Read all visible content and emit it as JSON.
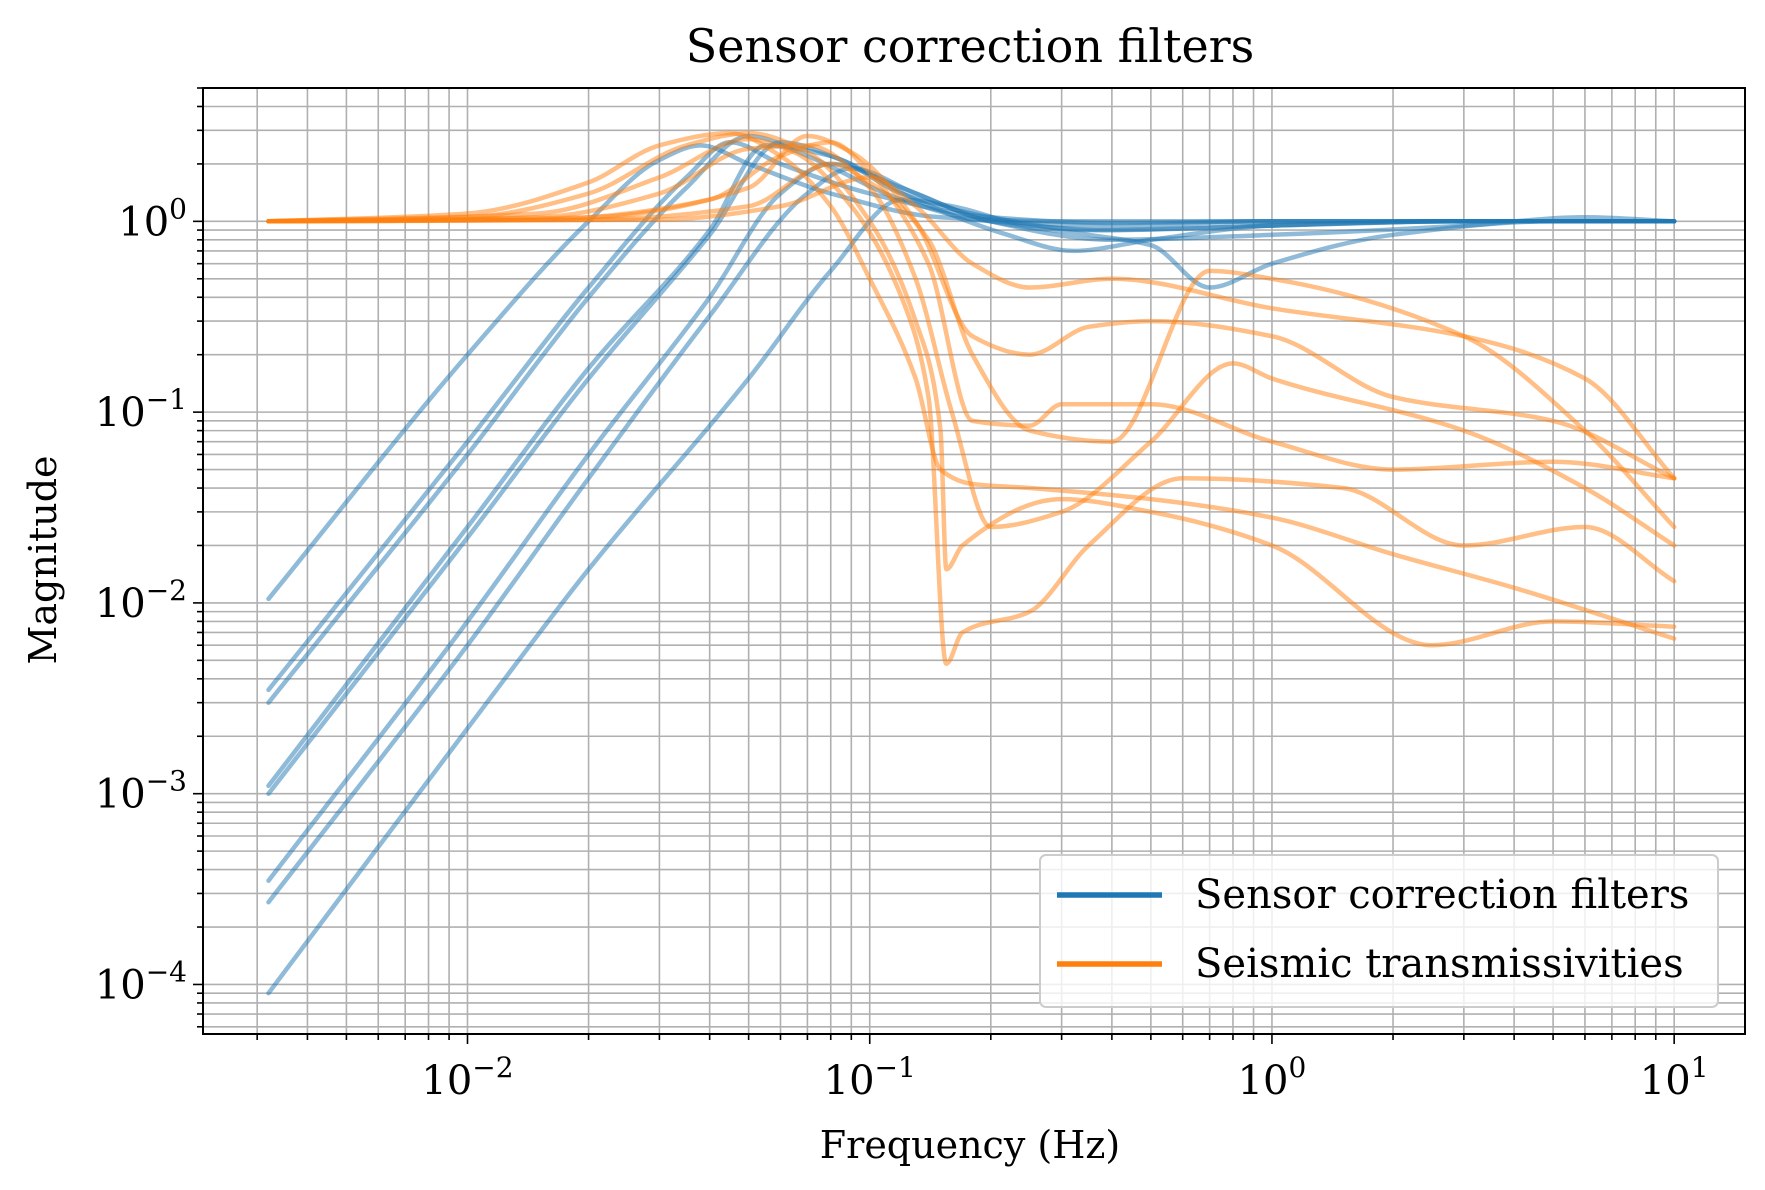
{
  "chart_data": {
    "type": "line",
    "title": "Sensor correction filters",
    "xlabel": "Frequency (Hz)",
    "ylabel": "Magnitude",
    "xscale": "log",
    "yscale": "log",
    "xlim": [
      0.0022,
      15
    ],
    "ylim": [
      5.5e-05,
      5
    ],
    "xticks": [
      {
        "value": 0.01,
        "base": "10",
        "exp": "−2"
      },
      {
        "value": 0.1,
        "base": "10",
        "exp": "−1"
      },
      {
        "value": 1,
        "base": "10",
        "exp": "0"
      },
      {
        "value": 10,
        "base": "10",
        "exp": "1"
      }
    ],
    "yticks": [
      {
        "value": 0.0001,
        "base": "10",
        "exp": "−4"
      },
      {
        "value": 0.001,
        "base": "10",
        "exp": "−3"
      },
      {
        "value": 0.01,
        "base": "10",
        "exp": "−2"
      },
      {
        "value": 0.1,
        "base": "10",
        "exp": "−1"
      },
      {
        "value": 1,
        "base": "10",
        "exp": "0"
      }
    ],
    "grid": "major and minor",
    "legend_position": "lower-right",
    "legend": [
      {
        "label": "Sensor correction filters",
        "color": "#1f77b4"
      },
      {
        "label": "Seismic transmissivities",
        "color": "#ff7f0e"
      }
    ],
    "series": [
      {
        "group": "Sensor correction filters",
        "color": "#1f77b4",
        "points": [
          [
            0.0032,
            0.0105
          ],
          [
            0.01,
            0.2
          ],
          [
            0.02,
            1.0
          ],
          [
            0.03,
            2.1
          ],
          [
            0.038,
            2.5
          ],
          [
            0.05,
            2.0
          ],
          [
            0.08,
            1.4
          ],
          [
            0.15,
            1.05
          ],
          [
            0.3,
            1.0
          ],
          [
            1,
            1.0
          ],
          [
            3,
            1.0
          ],
          [
            10,
            1.0
          ]
        ]
      },
      {
        "group": "Sensor correction filters",
        "color": "#1f77b4",
        "points": [
          [
            0.0032,
            0.0035
          ],
          [
            0.01,
            0.07
          ],
          [
            0.02,
            0.45
          ],
          [
            0.035,
            1.7
          ],
          [
            0.045,
            2.6
          ],
          [
            0.06,
            2.0
          ],
          [
            0.1,
            1.4
          ],
          [
            0.2,
            1.05
          ],
          [
            0.4,
            0.98
          ],
          [
            1,
            1.0
          ],
          [
            3,
            1.0
          ],
          [
            10,
            1.0
          ]
        ]
      },
      {
        "group": "Sensor correction filters",
        "color": "#1f77b4",
        "points": [
          [
            0.0032,
            0.003
          ],
          [
            0.01,
            0.06
          ],
          [
            0.02,
            0.4
          ],
          [
            0.035,
            1.5
          ],
          [
            0.05,
            2.8
          ],
          [
            0.07,
            2.2
          ],
          [
            0.12,
            1.3
          ],
          [
            0.2,
            1.0
          ],
          [
            0.4,
            0.95
          ],
          [
            1,
            1.0
          ],
          [
            3,
            1.0
          ],
          [
            10,
            1.0
          ]
        ]
      },
      {
        "group": "Sensor correction filters",
        "color": "#1f77b4",
        "points": [
          [
            0.0032,
            0.0011
          ],
          [
            0.01,
            0.025
          ],
          [
            0.02,
            0.17
          ],
          [
            0.04,
            0.9
          ],
          [
            0.055,
            2.5
          ],
          [
            0.08,
            2.2
          ],
          [
            0.12,
            1.4
          ],
          [
            0.2,
            1.05
          ],
          [
            0.35,
            0.9
          ],
          [
            1,
            0.95
          ],
          [
            3,
            1.0
          ],
          [
            10,
            1.0
          ]
        ]
      },
      {
        "group": "Sensor correction filters",
        "color": "#1f77b4",
        "points": [
          [
            0.0032,
            0.001
          ],
          [
            0.01,
            0.022
          ],
          [
            0.02,
            0.15
          ],
          [
            0.04,
            0.85
          ],
          [
            0.06,
            2.6
          ],
          [
            0.085,
            2.1
          ],
          [
            0.13,
            1.3
          ],
          [
            0.22,
            0.85
          ],
          [
            0.32,
            0.7
          ],
          [
            0.5,
            0.8
          ],
          [
            1,
            0.95
          ],
          [
            3,
            1.0
          ],
          [
            10,
            1.0
          ]
        ]
      },
      {
        "group": "Sensor correction filters",
        "color": "#1f77b4",
        "points": [
          [
            0.0032,
            0.00035
          ],
          [
            0.01,
            0.008
          ],
          [
            0.02,
            0.06
          ],
          [
            0.04,
            0.4
          ],
          [
            0.06,
            1.4
          ],
          [
            0.08,
            2.0
          ],
          [
            0.12,
            1.5
          ],
          [
            0.2,
            1.0
          ],
          [
            0.35,
            0.85
          ],
          [
            0.5,
            0.75
          ],
          [
            0.7,
            0.45
          ],
          [
            1,
            0.6
          ],
          [
            2,
            0.85
          ],
          [
            5,
            1.0
          ],
          [
            10,
            1.0
          ]
        ]
      },
      {
        "group": "Sensor correction filters",
        "color": "#1f77b4",
        "points": [
          [
            0.0032,
            0.00027
          ],
          [
            0.01,
            0.006
          ],
          [
            0.02,
            0.045
          ],
          [
            0.04,
            0.32
          ],
          [
            0.07,
            1.4
          ],
          [
            0.09,
            1.9
          ],
          [
            0.13,
            1.4
          ],
          [
            0.2,
            1.0
          ],
          [
            0.4,
            0.8
          ],
          [
            1,
            0.85
          ],
          [
            3,
            0.95
          ],
          [
            6,
            1.05
          ],
          [
            10,
            1.0
          ]
        ]
      },
      {
        "group": "Sensor correction filters",
        "color": "#1f77b4",
        "points": [
          [
            0.0032,
            9e-05
          ],
          [
            0.01,
            0.0022
          ],
          [
            0.02,
            0.015
          ],
          [
            0.05,
            0.15
          ],
          [
            0.08,
            0.55
          ],
          [
            0.12,
            1.3
          ],
          [
            0.16,
            1.2
          ],
          [
            0.25,
            0.95
          ],
          [
            0.4,
            0.9
          ],
          [
            1,
            0.95
          ],
          [
            3,
            1.0
          ],
          [
            10,
            1.0
          ]
        ]
      },
      {
        "group": "Seismic transmissivities",
        "color": "#ff7f0e",
        "points": [
          [
            0.0032,
            1.0
          ],
          [
            0.01,
            1.1
          ],
          [
            0.02,
            1.6
          ],
          [
            0.03,
            2.5
          ],
          [
            0.045,
            2.9
          ],
          [
            0.06,
            2.2
          ],
          [
            0.08,
            1.2
          ],
          [
            0.1,
            0.5
          ],
          [
            0.13,
            0.15
          ],
          [
            0.15,
            0.05
          ],
          [
            0.18,
            0.042
          ],
          [
            0.25,
            0.04
          ],
          [
            0.5,
            0.035
          ],
          [
            1,
            0.028
          ],
          [
            2,
            0.018
          ],
          [
            4,
            0.012
          ],
          [
            10,
            0.0065
          ]
        ]
      },
      {
        "group": "Seismic transmissivities",
        "color": "#ff7f0e",
        "points": [
          [
            0.0032,
            1.0
          ],
          [
            0.01,
            1.05
          ],
          [
            0.02,
            1.4
          ],
          [
            0.035,
            2.5
          ],
          [
            0.05,
            2.9
          ],
          [
            0.07,
            2.3
          ],
          [
            0.1,
            1.0
          ],
          [
            0.13,
            0.3
          ],
          [
            0.15,
            0.08
          ],
          [
            0.155,
            0.015
          ],
          [
            0.17,
            0.02
          ],
          [
            0.3,
            0.035
          ],
          [
            0.5,
            0.03
          ],
          [
            1,
            0.02
          ],
          [
            2.5,
            0.006
          ],
          [
            5,
            0.008
          ],
          [
            10,
            0.0075
          ]
        ]
      },
      {
        "group": "Seismic transmissivities",
        "color": "#ff7f0e",
        "points": [
          [
            0.0032,
            1.0
          ],
          [
            0.015,
            1.1
          ],
          [
            0.03,
            1.7
          ],
          [
            0.05,
            2.7
          ],
          [
            0.065,
            2.3
          ],
          [
            0.09,
            1.2
          ],
          [
            0.12,
            0.4
          ],
          [
            0.14,
            0.12
          ],
          [
            0.155,
            0.0048
          ],
          [
            0.17,
            0.007
          ],
          [
            0.25,
            0.009
          ],
          [
            0.35,
            0.02
          ],
          [
            0.6,
            0.045
          ],
          [
            1.5,
            0.04
          ],
          [
            3,
            0.02
          ],
          [
            6,
            0.025
          ],
          [
            10,
            0.013
          ]
        ]
      },
      {
        "group": "Seismic transmissivities",
        "color": "#ff7f0e",
        "points": [
          [
            0.0032,
            1.0
          ],
          [
            0.015,
            1.05
          ],
          [
            0.03,
            1.4
          ],
          [
            0.05,
            2.4
          ],
          [
            0.07,
            2.5
          ],
          [
            0.1,
            1.5
          ],
          [
            0.13,
            0.5
          ],
          [
            0.16,
            0.1
          ],
          [
            0.2,
            0.025
          ],
          [
            0.3,
            0.03
          ],
          [
            0.5,
            0.07
          ],
          [
            0.8,
            0.18
          ],
          [
            1,
            0.15
          ],
          [
            3,
            0.08
          ],
          [
            6,
            0.04
          ],
          [
            10,
            0.02
          ]
        ]
      },
      {
        "group": "Seismic transmissivities",
        "color": "#ff7f0e",
        "points": [
          [
            0.0032,
            1.0
          ],
          [
            0.015,
            1.02
          ],
          [
            0.04,
            1.3
          ],
          [
            0.06,
            2.2
          ],
          [
            0.08,
            2.6
          ],
          [
            0.1,
            1.8
          ],
          [
            0.14,
            0.6
          ],
          [
            0.18,
            0.09
          ],
          [
            0.25,
            0.085
          ],
          [
            0.3,
            0.11
          ],
          [
            0.5,
            0.11
          ],
          [
            1,
            0.07
          ],
          [
            2,
            0.05
          ],
          [
            5,
            0.055
          ],
          [
            10,
            0.045
          ]
        ]
      },
      {
        "group": "Seismic transmissivities",
        "color": "#ff7f0e",
        "points": [
          [
            0.0032,
            1.0
          ],
          [
            0.02,
            1.05
          ],
          [
            0.05,
            1.5
          ],
          [
            0.07,
            2.8
          ],
          [
            0.09,
            2.3
          ],
          [
            0.13,
            1.0
          ],
          [
            0.18,
            0.25
          ],
          [
            0.25,
            0.2
          ],
          [
            0.35,
            0.28
          ],
          [
            0.5,
            0.3
          ],
          [
            1,
            0.25
          ],
          [
            2,
            0.12
          ],
          [
            5,
            0.09
          ],
          [
            10,
            0.045
          ]
        ]
      },
      {
        "group": "Seismic transmissivities",
        "color": "#ff7f0e",
        "points": [
          [
            0.0032,
            1.0
          ],
          [
            0.02,
            1.02
          ],
          [
            0.05,
            1.2
          ],
          [
            0.08,
            2.0
          ],
          [
            0.1,
            1.6
          ],
          [
            0.14,
            0.8
          ],
          [
            0.18,
            0.2
          ],
          [
            0.25,
            0.08
          ],
          [
            0.4,
            0.07
          ],
          [
            0.7,
            0.55
          ],
          [
            1,
            0.5
          ],
          [
            3,
            0.25
          ],
          [
            6,
            0.08
          ],
          [
            10,
            0.025
          ]
        ]
      },
      {
        "group": "Seismic transmissivities",
        "color": "#ff7f0e",
        "points": [
          [
            0.0032,
            1.0
          ],
          [
            0.03,
            1.02
          ],
          [
            0.06,
            1.2
          ],
          [
            0.1,
            1.7
          ],
          [
            0.13,
            1.2
          ],
          [
            0.18,
            0.6
          ],
          [
            0.25,
            0.45
          ],
          [
            0.4,
            0.5
          ],
          [
            1,
            0.35
          ],
          [
            3,
            0.25
          ],
          [
            6,
            0.15
          ],
          [
            10,
            0.045
          ]
        ]
      }
    ]
  }
}
